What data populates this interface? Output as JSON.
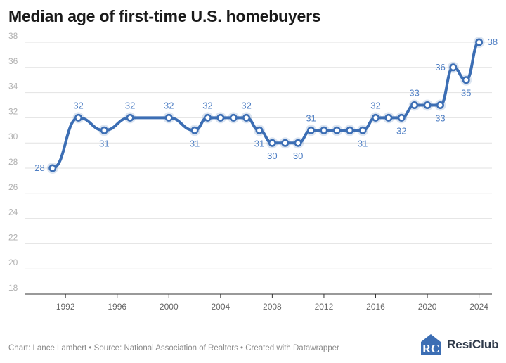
{
  "title": "Median age of first-time U.S. homebuyers",
  "footer": "Chart: Lance Lambert • Source: National Association of Realtors • Created with Datawrapper",
  "brand": {
    "name": "ResiClub",
    "logo_text": "RC"
  },
  "colors": {
    "line": "#3c6eb4",
    "label": "#4f7fc4",
    "grid": "#e2e2e2",
    "tick": "#b0b0b0",
    "title": "#1a1a1a"
  },
  "chart_data": {
    "type": "line",
    "title": "Median age of first-time U.S. homebuyers",
    "xlabel": "",
    "ylabel": "",
    "ylim": [
      18,
      38
    ],
    "yticks": [
      18,
      20,
      22,
      24,
      26,
      28,
      30,
      32,
      34,
      36,
      38
    ],
    "xlim": [
      1989,
      2025
    ],
    "xticks": [
      1992,
      1996,
      2000,
      2004,
      2008,
      2012,
      2016,
      2020,
      2024
    ],
    "grid": true,
    "x": [
      1991,
      1993,
      1995,
      1997,
      2000,
      2002,
      2003,
      2004,
      2005,
      2006,
      2007,
      2008,
      2009,
      2010,
      2011,
      2012,
      2013,
      2014,
      2015,
      2016,
      2017,
      2018,
      2019,
      2020,
      2021,
      2022,
      2023,
      2024
    ],
    "y": [
      28,
      32,
      31,
      32,
      32,
      31,
      32,
      32,
      32,
      32,
      31,
      30,
      30,
      30,
      31,
      31,
      31,
      31,
      31,
      32,
      32,
      32,
      33,
      33,
      33,
      36,
      35,
      38
    ],
    "labels": [
      {
        "x": 1991,
        "text": "28",
        "pos": "left"
      },
      {
        "x": 1993,
        "text": "32",
        "pos": "above"
      },
      {
        "x": 1995,
        "text": "31",
        "pos": "below"
      },
      {
        "x": 1997,
        "text": "32",
        "pos": "above"
      },
      {
        "x": 2000,
        "text": "32",
        "pos": "above"
      },
      {
        "x": 2002,
        "text": "31",
        "pos": "below"
      },
      {
        "x": 2003,
        "text": "32",
        "pos": "above"
      },
      {
        "x": 2006,
        "text": "32",
        "pos": "above"
      },
      {
        "x": 2007,
        "text": "31",
        "pos": "below"
      },
      {
        "x": 2008,
        "text": "30",
        "pos": "below"
      },
      {
        "x": 2010,
        "text": "30",
        "pos": "below"
      },
      {
        "x": 2011,
        "text": "31",
        "pos": "above"
      },
      {
        "x": 2015,
        "text": "31",
        "pos": "below"
      },
      {
        "x": 2016,
        "text": "32",
        "pos": "above"
      },
      {
        "x": 2018,
        "text": "32",
        "pos": "below"
      },
      {
        "x": 2019,
        "text": "33",
        "pos": "above"
      },
      {
        "x": 2021,
        "text": "33",
        "pos": "below"
      },
      {
        "x": 2022,
        "text": "36",
        "pos": "left"
      },
      {
        "x": 2023,
        "text": "35",
        "pos": "below"
      },
      {
        "x": 2024,
        "text": "38",
        "pos": "right"
      }
    ]
  }
}
